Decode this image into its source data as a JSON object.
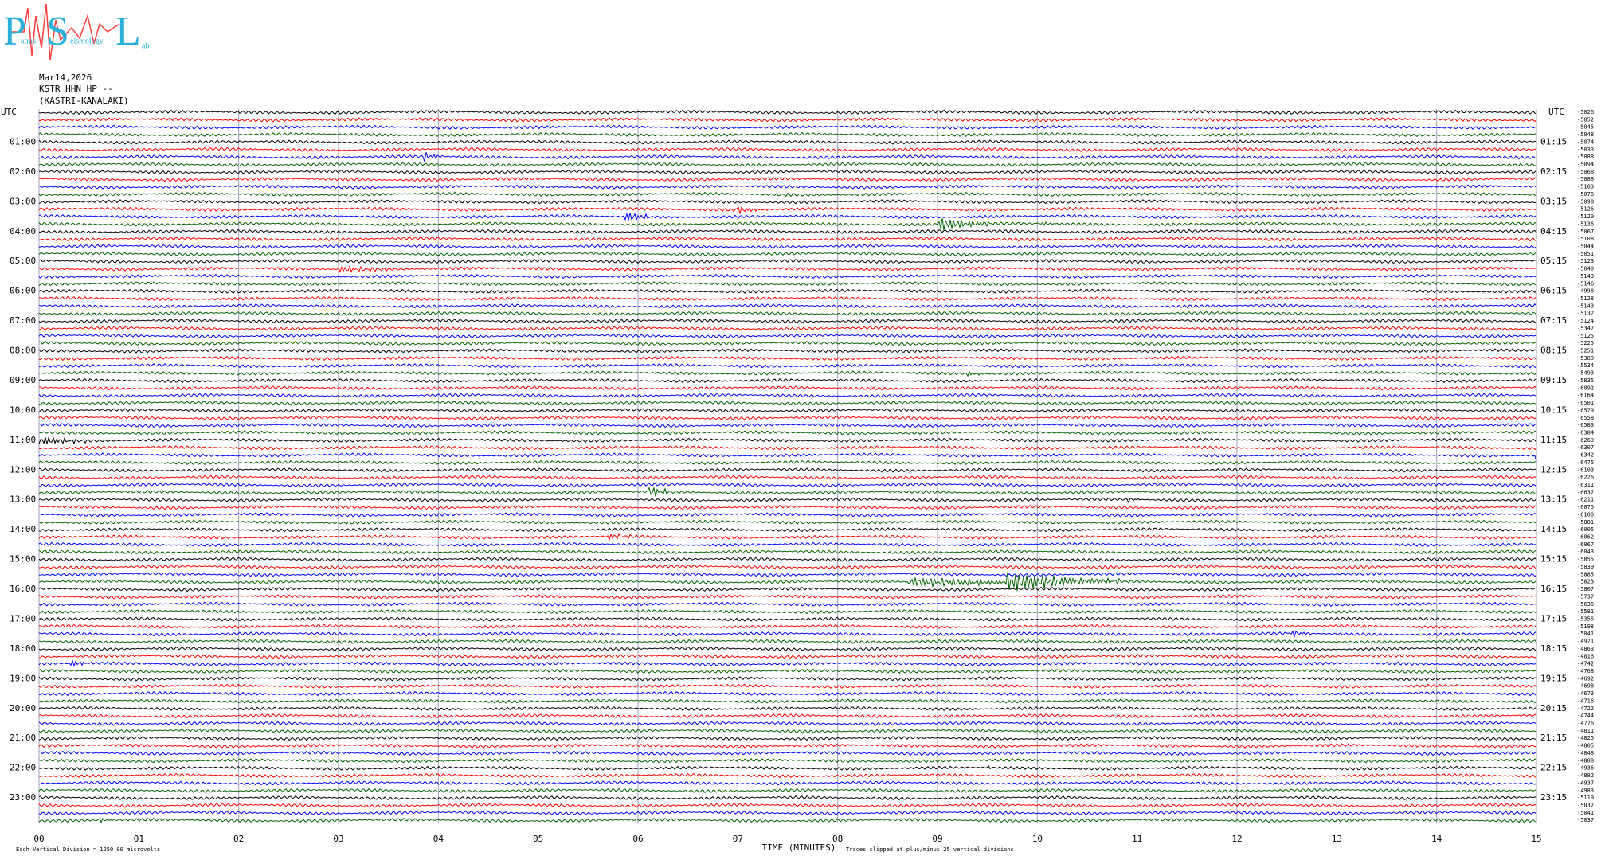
{
  "logo": {
    "letters": [
      "P",
      "S",
      "L"
    ],
    "words": [
      "atras",
      "eismology",
      "ab"
    ]
  },
  "header": {
    "date": "Mar14,2026",
    "station": "KSTR HHN HP --",
    "location": "(KASTRI-KANALAKI)"
  },
  "utc_left": "UTC",
  "utc_right": "UTC",
  "left_labels": [
    "01:00",
    "02:00",
    "03:00",
    "04:00",
    "05:00",
    "06:00",
    "07:00",
    "08:00",
    "09:00",
    "10:00",
    "11:00",
    "12:00",
    "13:00",
    "14:00",
    "15:00",
    "16:00",
    "17:00",
    "18:00",
    "19:00",
    "20:00",
    "21:00",
    "22:00",
    "23:00"
  ],
  "right_labels": [
    "01:15",
    "02:15",
    "03:15",
    "04:15",
    "05:15",
    "06:15",
    "07:15",
    "08:15",
    "09:15",
    "10:15",
    "11:15",
    "12:15",
    "13:15",
    "14:15",
    "15:15",
    "16:15",
    "17:15",
    "18:15",
    "19:15",
    "20:15",
    "21:15",
    "22:15",
    "23:15"
  ],
  "trace_offsets": [
    "-5026",
    "-5052",
    "-5045",
    "-5048",
    "-5074",
    "-5033",
    "-5088",
    "-5094",
    "-5068",
    "-5088",
    "-5103",
    "-5076",
    "-5098",
    "-5126",
    "-5120",
    "-5136",
    "-5067",
    "-5108",
    "-5044",
    "-5051",
    "-5123",
    "-5040",
    "-5143",
    "-5146",
    "-4998",
    "-5128",
    "-5143",
    "-5132",
    "-5124",
    "-5347",
    "-5125",
    "-5225",
    "-5251",
    "-5389",
    "-5534",
    "-5493",
    "-5835",
    "-6092",
    "-6164",
    "-6501",
    "-6579",
    "-6558",
    "-6583",
    "-6384",
    "-6269",
    "-6307",
    "-6342",
    "-6475",
    "-6103",
    "-6226",
    "-6311",
    "-6637",
    "-6211",
    "-6075",
    "-6100",
    "-5881",
    "-6005",
    "-6062",
    "-6067",
    "-6043",
    "-5855",
    "-5839",
    "-5885",
    "-5823",
    "-5807",
    "-5737",
    "-5636",
    "-5581",
    "-5355",
    "-5198",
    "-5041",
    "-4971",
    "-4863",
    "-4816",
    "-4742",
    "-4768",
    "-4692",
    "-4698",
    "-4673",
    "-4716",
    "-4722",
    "-4744",
    "-4776",
    "-4811",
    "-4825",
    "-4805",
    "-4848",
    "-4888",
    "-4936",
    "-4882",
    "-4937",
    "-4983",
    "-5119",
    "-5037",
    "-5041",
    "-5037"
  ],
  "x_ticks": [
    "00",
    "01",
    "02",
    "03",
    "04",
    "05",
    "06",
    "07",
    "08",
    "09",
    "10",
    "11",
    "12",
    "13",
    "14",
    "15"
  ],
  "x_axis_title": "TIME (MINUTES)",
  "footer_left": "Each Vertical Division = 1250.00 microvolts",
  "footer_right": "Traces clipped at plus/minus 25 vertical divisions",
  "trace_colors": [
    "#000000",
    "#ff0000",
    "#0000ff",
    "#006400"
  ]
}
